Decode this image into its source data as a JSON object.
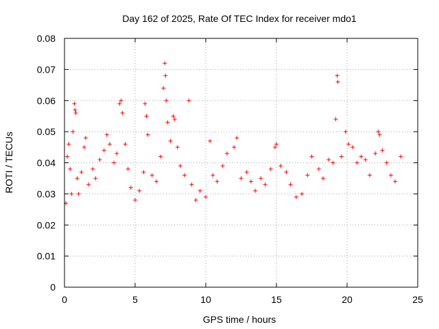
{
  "chart_data": {
    "type": "scatter",
    "title": "Day 162 of 2025, Rate Of TEC Index for receiver mdo1",
    "xlabel": "GPS time / hours",
    "ylabel": "ROTI / TECUs",
    "xlim": [
      0,
      25
    ],
    "ylim": [
      0,
      0.08
    ],
    "xticks": [
      0,
      5,
      10,
      15,
      20,
      25
    ],
    "xtick_labels": [
      "0",
      "5",
      "10",
      "15",
      "20",
      "25"
    ],
    "yticks": [
      0,
      0.01,
      0.02,
      0.03,
      0.04,
      0.05,
      0.06,
      0.07,
      0.08
    ],
    "ytick_labels": [
      "0",
      "0.01",
      "0.02",
      "0.03",
      "0.04",
      "0.05",
      "0.06",
      "0.07",
      "0.08"
    ],
    "grid": true,
    "marker": "plus",
    "series_color": "#ff0000",
    "series": [
      {
        "points": [
          [
            0.1,
            0.027
          ],
          [
            0.2,
            0.042
          ],
          [
            0.3,
            0.046
          ],
          [
            0.4,
            0.038
          ],
          [
            0.5,
            0.03
          ],
          [
            0.6,
            0.05
          ],
          [
            0.7,
            0.059
          ],
          [
            0.75,
            0.057
          ],
          [
            0.8,
            0.056
          ],
          [
            0.9,
            0.035
          ],
          [
            1.0,
            0.03
          ],
          [
            1.2,
            0.037
          ],
          [
            1.4,
            0.045
          ],
          [
            1.5,
            0.048
          ],
          [
            1.7,
            0.033
          ],
          [
            2.0,
            0.038
          ],
          [
            2.2,
            0.035
          ],
          [
            2.5,
            0.041
          ],
          [
            2.8,
            0.044
          ],
          [
            3.0,
            0.049
          ],
          [
            3.2,
            0.046
          ],
          [
            3.5,
            0.04
          ],
          [
            3.7,
            0.043
          ],
          [
            3.9,
            0.059
          ],
          [
            4.0,
            0.06
          ],
          [
            4.1,
            0.056
          ],
          [
            4.3,
            0.046
          ],
          [
            4.5,
            0.038
          ],
          [
            4.7,
            0.032
          ],
          [
            5.0,
            0.028
          ],
          [
            5.3,
            0.031
          ],
          [
            5.6,
            0.037
          ],
          [
            5.7,
            0.059
          ],
          [
            5.8,
            0.055
          ],
          [
            5.9,
            0.049
          ],
          [
            6.2,
            0.036
          ],
          [
            6.5,
            0.034
          ],
          [
            6.8,
            0.042
          ],
          [
            7.0,
            0.064
          ],
          [
            7.1,
            0.072
          ],
          [
            7.15,
            0.068
          ],
          [
            7.2,
            0.06
          ],
          [
            7.3,
            0.053
          ],
          [
            7.5,
            0.047
          ],
          [
            7.7,
            0.055
          ],
          [
            7.8,
            0.054
          ],
          [
            8.0,
            0.045
          ],
          [
            8.2,
            0.039
          ],
          [
            8.5,
            0.036
          ],
          [
            8.8,
            0.06
          ],
          [
            9.0,
            0.033
          ],
          [
            9.3,
            0.028
          ],
          [
            9.6,
            0.031
          ],
          [
            10.0,
            0.029
          ],
          [
            10.3,
            0.047
          ],
          [
            10.5,
            0.036
          ],
          [
            10.8,
            0.034
          ],
          [
            11.2,
            0.039
          ],
          [
            11.5,
            0.043
          ],
          [
            12.0,
            0.045
          ],
          [
            12.2,
            0.048
          ],
          [
            12.5,
            0.035
          ],
          [
            12.9,
            0.037
          ],
          [
            13.2,
            0.034
          ],
          [
            13.5,
            0.031
          ],
          [
            13.9,
            0.035
          ],
          [
            14.2,
            0.033
          ],
          [
            14.6,
            0.038
          ],
          [
            14.9,
            0.045
          ],
          [
            15.0,
            0.046
          ],
          [
            15.3,
            0.039
          ],
          [
            15.7,
            0.037
          ],
          [
            16.0,
            0.033
          ],
          [
            16.4,
            0.029
          ],
          [
            16.8,
            0.03
          ],
          [
            17.2,
            0.036
          ],
          [
            17.5,
            0.042
          ],
          [
            18.0,
            0.038
          ],
          [
            18.3,
            0.035
          ],
          [
            18.7,
            0.041
          ],
          [
            19.0,
            0.04
          ],
          [
            19.2,
            0.054
          ],
          [
            19.3,
            0.068
          ],
          [
            19.35,
            0.066
          ],
          [
            19.6,
            0.042
          ],
          [
            19.9,
            0.05
          ],
          [
            20.1,
            0.046
          ],
          [
            20.4,
            0.045
          ],
          [
            20.7,
            0.04
          ],
          [
            21.0,
            0.042
          ],
          [
            21.3,
            0.041
          ],
          [
            21.6,
            0.036
          ],
          [
            22.0,
            0.043
          ],
          [
            22.2,
            0.05
          ],
          [
            22.3,
            0.049
          ],
          [
            22.5,
            0.044
          ],
          [
            22.8,
            0.04
          ],
          [
            23.1,
            0.036
          ],
          [
            23.4,
            0.034
          ],
          [
            23.8,
            0.042
          ]
        ]
      }
    ]
  }
}
